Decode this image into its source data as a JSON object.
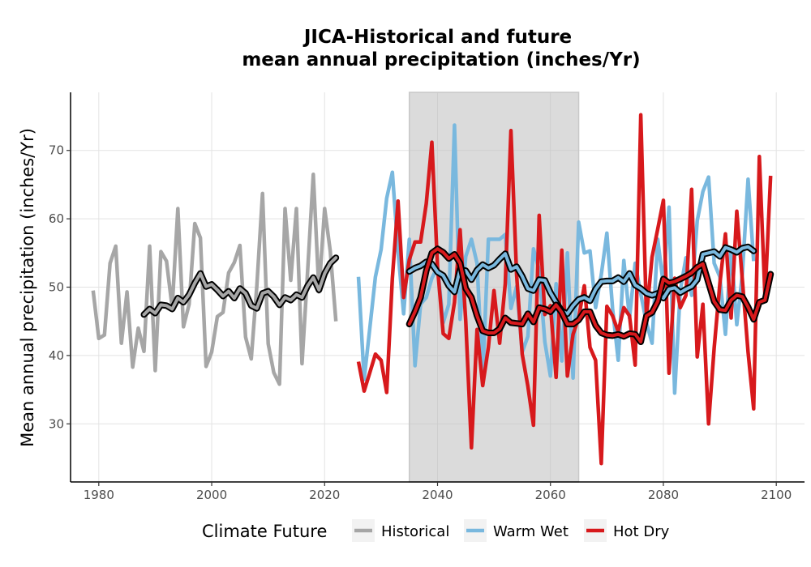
{
  "chart_data": {
    "type": "line",
    "title_lines": [
      "JICA-Historical and future",
      "mean annual precipitation (inches/Yr)"
    ],
    "xlabel": "",
    "ylabel": "Mean annual precipitation (inches/Yr)",
    "xlim": [
      1975,
      2105
    ],
    "ylim": [
      21.5,
      78.5
    ],
    "x_ticks": [
      1980,
      2000,
      2020,
      2040,
      2060,
      2080,
      2100
    ],
    "y_ticks": [
      30,
      40,
      50,
      60,
      70
    ],
    "grid": true,
    "shaded_period": [
      2035,
      2065
    ],
    "legend": {
      "title": "Climate Future",
      "position": "bottom",
      "items": [
        "Historical",
        "Warm Wet",
        "Hot Dry"
      ]
    },
    "series": [
      {
        "name": "Historical",
        "color": "#a6a6a6",
        "x_start": 1979,
        "values": [
          49.5,
          42.5,
          43,
          53.5,
          56,
          41.8,
          49.3,
          38.3,
          44,
          40.6,
          56,
          37.8,
          55.2,
          53.8,
          47,
          61.5,
          44.2,
          47.5,
          59.3,
          57.2,
          38.4,
          40.5,
          45.7,
          46.3,
          52.1,
          53.6,
          56.1,
          42.7,
          39.5,
          50.2,
          63.7,
          41.7,
          37.5,
          35.8,
          61.5,
          51,
          61.5,
          38.8,
          52.5,
          66.5,
          49.3,
          61.5,
          55.3,
          45
        ]
      },
      {
        "name": "Historical smooth",
        "color": "#a6a6a6",
        "smooth": true,
        "x_start": 1988,
        "values": [
          46,
          46.8,
          46.2,
          47.4,
          47.3,
          46.8,
          48.4,
          47.8,
          48.9,
          50.6,
          52,
          50.1,
          50.4,
          49.6,
          48.7,
          49.4,
          48.4,
          49.8,
          49.1,
          47.3,
          46.9,
          49.1,
          49.4,
          48.6,
          47.4,
          48.5,
          48.1,
          48.9,
          48.5,
          50.2,
          51.4,
          49.6,
          52,
          53.5,
          54.3
        ]
      },
      {
        "name": "Warm Wet",
        "color": "#79b8de",
        "x_start": 2026,
        "values": [
          51.5,
          36.5,
          44,
          51.5,
          55.5,
          63,
          66.8,
          55.2,
          46.1,
          57,
          38.5,
          47.5,
          48.5,
          51.3,
          53,
          44.8,
          47.5,
          73.7,
          45.3,
          54.5,
          57,
          53.5,
          36.8,
          57,
          57,
          57,
          57.7,
          46.9,
          50.1,
          40.5,
          42.8,
          55.6,
          52.5,
          42,
          37,
          50.5,
          39.2,
          55,
          36.7,
          59.5,
          55,
          55.3,
          47,
          51.8,
          57.9,
          46.9,
          39.3,
          53.9,
          45.5,
          53.5,
          49,
          44.8,
          41.8,
          57,
          50.3,
          61.7,
          34.5,
          49.5,
          54.3,
          48.8,
          59.7,
          64,
          66.1,
          53.5,
          51.5,
          43.1,
          55.7,
          44.5,
          52,
          65.8,
          53.8
        ]
      },
      {
        "name": "Hot Dry",
        "color": "#d7191c",
        "x_start": 2026,
        "values": [
          39.1,
          34.8,
          37.5,
          40.2,
          39.3,
          34.6,
          51.3,
          62.6,
          48.5,
          54,
          56.6,
          56.6,
          62.2,
          71.2,
          52.9,
          43.2,
          42.5,
          47.8,
          58.4,
          45,
          26.5,
          43.8,
          35.6,
          41.2,
          49.5,
          41.8,
          50.5,
          72.9,
          51.8,
          40.2,
          35.5,
          29.8,
          60.5,
          46,
          47.3,
          36.8,
          55.4,
          37,
          43.1,
          45.5,
          50.2,
          41.2,
          39.3,
          24.2,
          47.2,
          45.8,
          43.5,
          47,
          45.8,
          38.6,
          75.2,
          45.7,
          54.4,
          58.5,
          62.7,
          37.4,
          51.3,
          47,
          48.8,
          64.3,
          39.8,
          47.5,
          30,
          41.1,
          50.5,
          57.8,
          45.5,
          61.1,
          51,
          40.5,
          32.2,
          69.1,
          48.5,
          66.3
        ]
      },
      {
        "name": "Warm Wet smooth",
        "color": "#79b8de",
        "smooth": true,
        "x_start": 2035,
        "values": [
          52.3,
          52.8,
          53.1,
          53.7,
          53.4,
          52.2,
          51.7,
          50.2,
          49.3,
          52.6,
          52.4,
          51.1,
          52.5,
          53.3,
          52.8,
          53.2,
          54.1,
          54.9,
          52.6,
          53,
          51.6,
          49.8,
          49.5,
          51.1,
          51,
          49.2,
          47.8,
          46.5,
          46.1,
          47.3,
          48.2,
          48.5,
          48,
          49.7,
          50.8,
          50.9,
          50.9,
          51.4,
          50.8,
          52,
          50.3,
          49.8,
          49.1,
          48.8,
          49.1,
          48.4,
          49.7,
          49.9,
          49.2,
          49.7,
          50.1,
          51.1,
          54.8,
          55,
          55.2,
          54.5,
          55.8,
          55.5,
          55.1,
          55.7,
          55.9,
          55.3
        ]
      },
      {
        "name": "Hot Dry smooth",
        "color": "#d7191c",
        "smooth": true,
        "x_start": 2035,
        "values": [
          44.6,
          46.4,
          48.5,
          52.4,
          55,
          55.6,
          55.1,
          54.2,
          54.8,
          53.5,
          49.8,
          48.5,
          45.8,
          43.6,
          43.3,
          43.3,
          43.9,
          45.5,
          44.8,
          44.7,
          44.6,
          46.1,
          44.9,
          47,
          46.8,
          46.4,
          47.4,
          46.3,
          44.6,
          44.6,
          45.2,
          46.4,
          46.4,
          44.4,
          43.3,
          43,
          42.9,
          43.1,
          42.8,
          43.2,
          43.1,
          42,
          45.8,
          46.3,
          47.9,
          51.2,
          50.6,
          50.8,
          51.2,
          51.6,
          52.1,
          52.9,
          53.4,
          50.6,
          47.9,
          46.7,
          46.6,
          48.1,
          48.8,
          48.6,
          47.1,
          45.3,
          47.8,
          48.1,
          51.9
        ]
      }
    ]
  }
}
